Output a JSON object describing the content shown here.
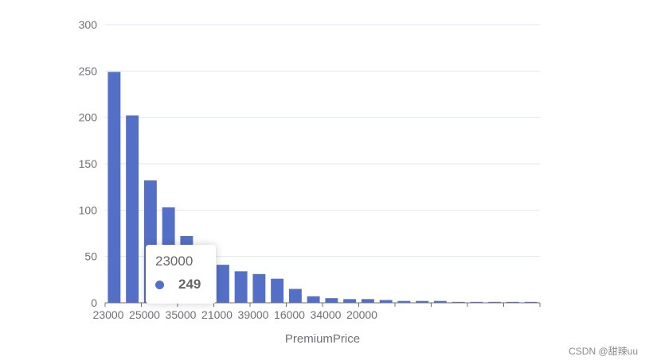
{
  "chart_data": {
    "type": "bar",
    "xlabel": "PremiumPrice",
    "ylabel": "",
    "ylim": [
      0,
      300
    ],
    "yticks": [
      0,
      50,
      100,
      150,
      200,
      250,
      300
    ],
    "grid": true,
    "categories": [
      "23000",
      "",
      "25000",
      "",
      "35000",
      "",
      "21000",
      "",
      "39000",
      "",
      "16000",
      "",
      "34000",
      "",
      "20000",
      "",
      "",
      "",
      "",
      "",
      "",
      "",
      "",
      ""
    ],
    "values": [
      249,
      202,
      132,
      103,
      72,
      41,
      41,
      34,
      31,
      26,
      15,
      7,
      5,
      4,
      4,
      3,
      2,
      2,
      2,
      1,
      1,
      1,
      1,
      1
    ],
    "series_color": "#5470c6"
  },
  "tooltip": {
    "category": "23000",
    "value": "249"
  },
  "watermark": "CSDN @甜辣uu"
}
